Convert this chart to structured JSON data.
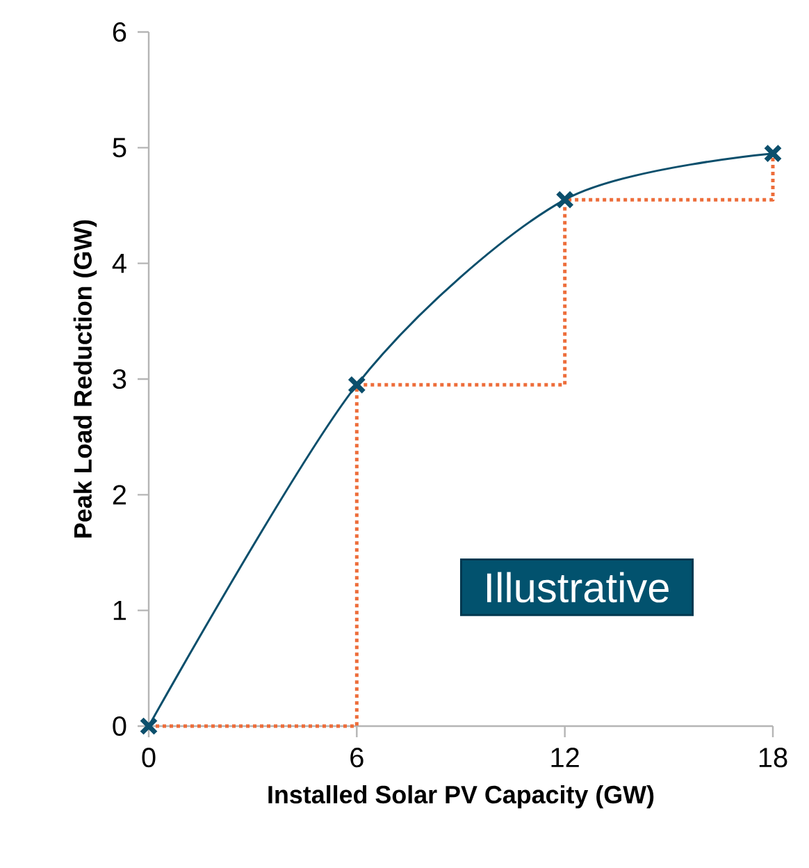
{
  "chart_data": {
    "type": "line",
    "xlabel": "Installed Solar PV Capacity (GW)",
    "ylabel": "Peak Load Reduction (GW)",
    "x": [
      0,
      6,
      12,
      18
    ],
    "xlim": [
      0,
      18
    ],
    "ylim": [
      0,
      6
    ],
    "xticks": [
      0,
      6,
      12,
      18
    ],
    "yticks": [
      0,
      1,
      2,
      3,
      4,
      5,
      6
    ],
    "grid": false,
    "legend": false,
    "series": [
      {
        "type": "step",
        "color": "#ed6d3a",
        "line_style": "dotted",
        "marker": "none",
        "values": [
          0,
          2.95,
          4.55,
          4.95
        ]
      },
      {
        "color": "#0b4f6c",
        "line_style": "solid",
        "marker": "cross",
        "values": [
          0,
          2.95,
          4.55,
          4.95
        ]
      }
    ],
    "annotations": [
      "Illustrative"
    ]
  }
}
